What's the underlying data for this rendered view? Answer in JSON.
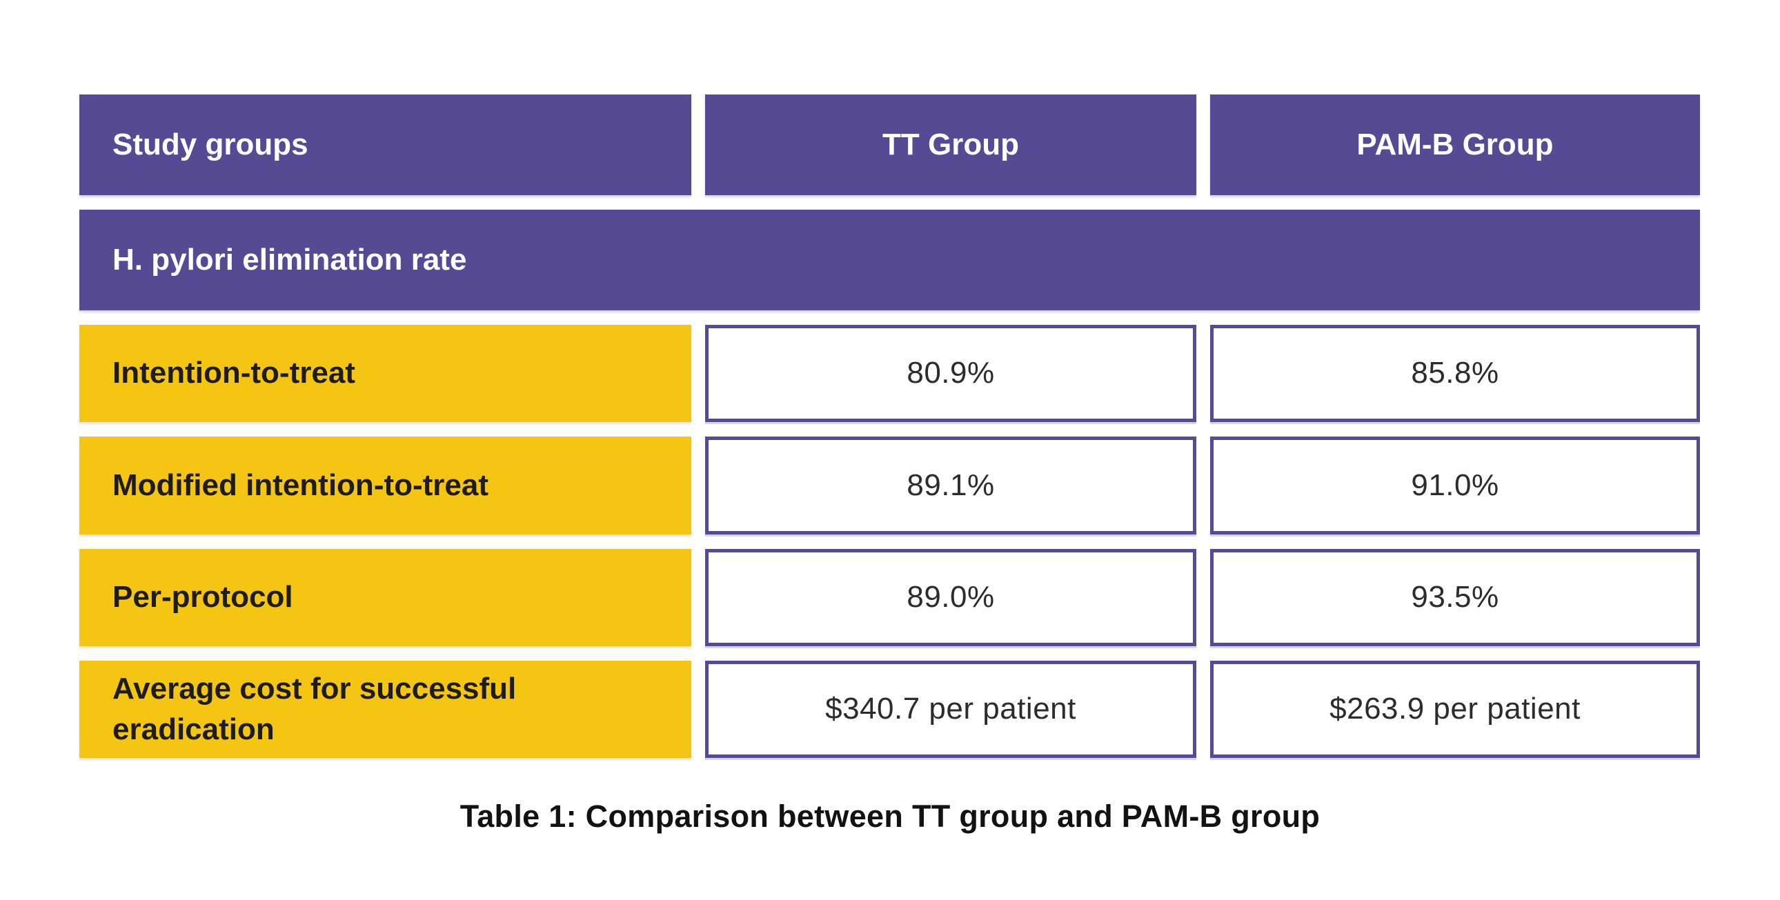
{
  "table": {
    "headers": {
      "study_groups": "Study groups",
      "tt_group": "TT Group",
      "pamb_group": "PAM-B Group"
    },
    "section_header": "H. pylori elimination rate",
    "rows": [
      {
        "label": "Intention-to-treat",
        "tt": "80.9%",
        "pamb": "85.8%"
      },
      {
        "label": "Modified intention-to-treat",
        "tt": "89.1%",
        "pamb": "91.0%"
      },
      {
        "label": "Per-protocol",
        "tt": "89.0%",
        "pamb": "93.5%"
      },
      {
        "label": "Average cost for successful eradication",
        "tt": "$340.7 per patient",
        "pamb": "$263.9 per patient"
      }
    ],
    "caption": "Table 1: Comparison between TT group and PAM-B group"
  },
  "colors": {
    "purple": "#564a94",
    "yellow": "#f5c513",
    "label_text": "#1e1d1b",
    "value_text": "#2d2c2a",
    "header_text": "#ffffff",
    "background": "#ffffff"
  },
  "chart_data": {
    "type": "table",
    "title": "Table 1: Comparison between TT group and PAM-B group",
    "columns": [
      "Study groups",
      "TT Group",
      "PAM-B Group"
    ],
    "section_header": "H. pylori elimination rate",
    "rows": [
      [
        "Intention-to-treat",
        "80.9%",
        "85.8%"
      ],
      [
        "Modified intention-to-treat",
        "89.1%",
        "91.0%"
      ],
      [
        "Per-protocol",
        "89.0%",
        "93.5%"
      ],
      [
        "Average cost for successful eradication",
        "$340.7 per patient",
        "$263.9 per patient"
      ]
    ],
    "series": [
      {
        "name": "TT Group",
        "values": [
          80.9,
          89.1,
          89.0,
          340.7
        ]
      },
      {
        "name": "PAM-B Group",
        "values": [
          85.8,
          91.0,
          93.5,
          263.9
        ]
      }
    ],
    "categories": [
      "Intention-to-treat",
      "Modified intention-to-treat",
      "Per-protocol",
      "Average cost for successful eradication (USD per patient)"
    ],
    "layout": {
      "grid": false,
      "legend_position": "none",
      "style": "infographic-table"
    }
  }
}
